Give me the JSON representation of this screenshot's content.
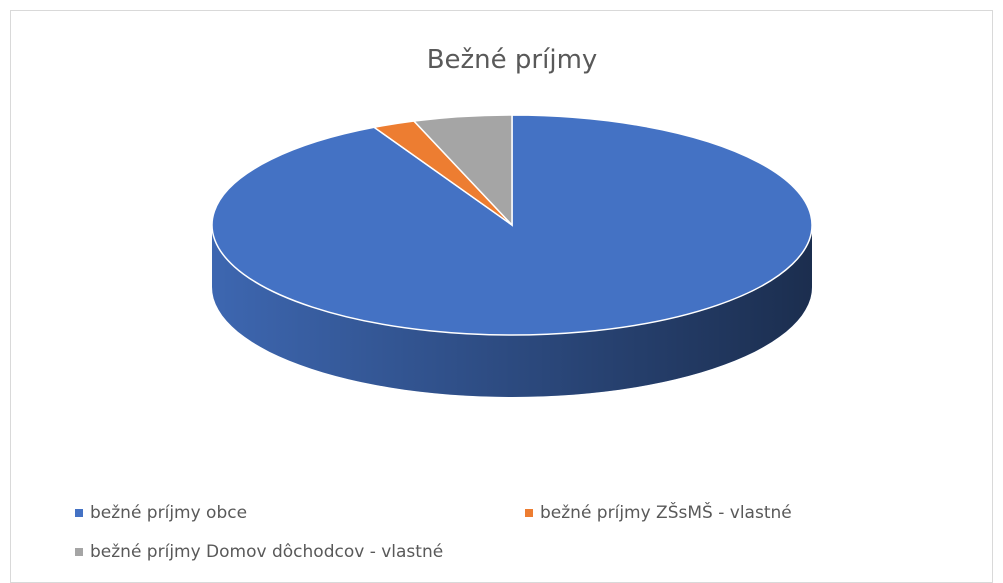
{
  "chart_data": {
    "type": "pie3d",
    "title": "Bežné príjmy",
    "categories": [
      "bežné príjmy obce",
      "bežné príjmy ZŠsMŠ - vlastné",
      "bežné príjmy Domov dôchodcov - vlastné"
    ],
    "values": [
      92.4,
      2.3,
      5.3
    ],
    "colors": [
      "#4472c4",
      "#ed7d31",
      "#a5a5a5"
    ],
    "legend": "bottom"
  }
}
